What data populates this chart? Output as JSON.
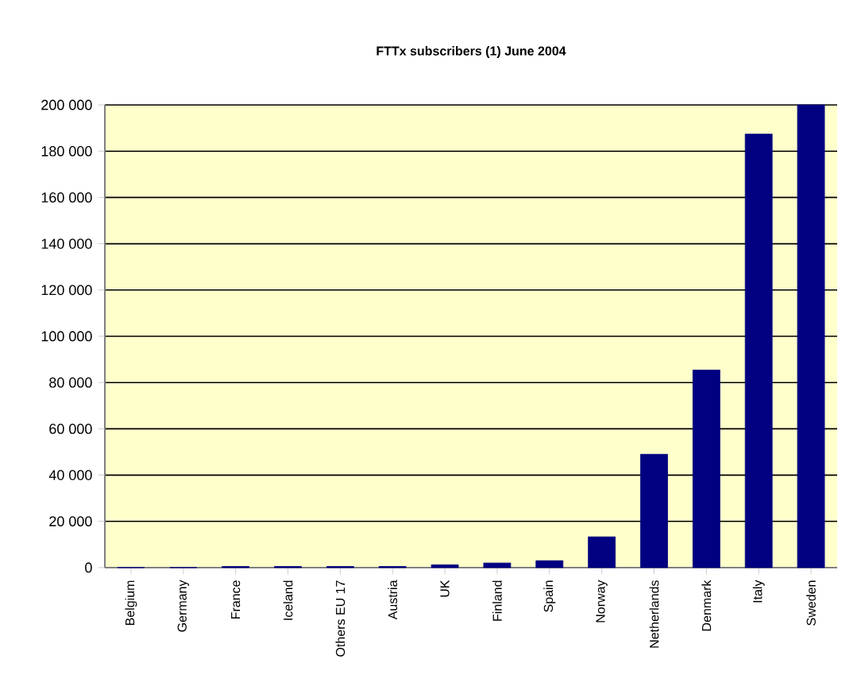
{
  "chart_data": {
    "type": "bar",
    "title": "FTTx subscribers (1) June 2004",
    "categories": [
      "Belgium",
      "Germany",
      "France",
      "Iceland",
      "Others EU 17",
      "Austria",
      "UK",
      "Finland",
      "Spain",
      "Norway",
      "Netherlands",
      "Denmark",
      "Italy",
      "Sweden"
    ],
    "values": [
      0,
      0,
      500,
      500,
      500,
      500,
      1200,
      2000,
      3000,
      13300,
      49000,
      85400,
      187400,
      200000
    ],
    "color": "#000080",
    "ylim": [
      0,
      200000
    ],
    "yticks": [
      {
        "value": 0,
        "label": "0"
      },
      {
        "value": 20000,
        "label": "20 000"
      },
      {
        "value": 40000,
        "label": "40 000"
      },
      {
        "value": 60000,
        "label": "60 000"
      },
      {
        "value": 80000,
        "label": "80 000"
      },
      {
        "value": 100000,
        "label": "100 000"
      },
      {
        "value": 120000,
        "label": "120 000"
      },
      {
        "value": 140000,
        "label": "140 000"
      },
      {
        "value": 160000,
        "label": "160 000"
      },
      {
        "value": 180000,
        "label": "180 000"
      },
      {
        "value": 200000,
        "label": "200 000"
      }
    ],
    "grid": "y"
  }
}
